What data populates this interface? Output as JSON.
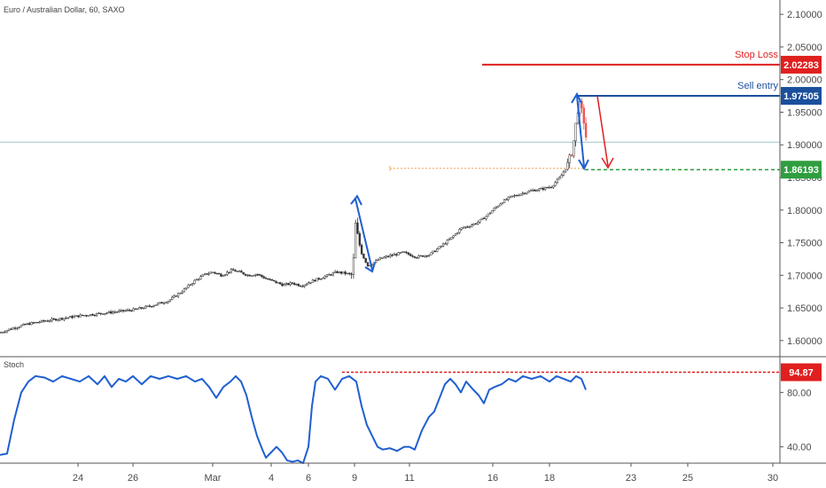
{
  "header": {
    "title": "Euro / Australian Dollar, 60, SAXO"
  },
  "indicator": {
    "label": "Stoch"
  },
  "colors": {
    "up": "#26a69a",
    "down": "#ef5350",
    "candle_body_up": "#ffffff",
    "candle_body_down": "#333333",
    "wick": "#333333",
    "stoch_line": "#1f5fd1",
    "stop_loss": "#e01f1f",
    "sell_entry": "#1b4f9c",
    "target": "#2e9e3f",
    "orange_dotted": "#f0a04b",
    "arrow_blue": "#1f5fd1",
    "arrow_red": "#e01f1f",
    "hline": "#9fc5c8"
  },
  "annotations": {
    "stop_loss_label": "Stop Loss",
    "stop_loss_value": "2.02283",
    "sell_entry_label": "Sell entry",
    "sell_entry_value": "1.97505",
    "target_value": "1.86193",
    "stoch_level_value": "94.87"
  },
  "chart_data": {
    "type": "candlestick",
    "title": "Euro / Australian Dollar, 60, SAXO",
    "price_axis": {
      "ticks": [
        "2.10000",
        "2.05000",
        "2.00000",
        "1.95000",
        "1.90000",
        "1.85000",
        "1.80000",
        "1.75000",
        "1.70000",
        "1.65000",
        "1.60000"
      ],
      "range": [
        1.578,
        2.122
      ]
    },
    "x_axis": {
      "ticks": [
        "24",
        "26",
        "Mar",
        "4",
        "6",
        "9",
        "11",
        "16",
        "18",
        "23",
        "25",
        "30"
      ]
    },
    "price_path": [
      [
        0,
        1.612
      ],
      [
        12,
        1.618
      ],
      [
        30,
        1.625
      ],
      [
        50,
        1.63
      ],
      [
        70,
        1.634
      ],
      [
        90,
        1.638
      ],
      [
        110,
        1.641
      ],
      [
        130,
        1.644
      ],
      [
        150,
        1.647
      ],
      [
        170,
        1.653
      ],
      [
        190,
        1.661
      ],
      [
        205,
        1.675
      ],
      [
        220,
        1.692
      ],
      [
        232,
        1.702
      ],
      [
        240,
        1.705
      ],
      [
        250,
        1.7
      ],
      [
        262,
        1.708
      ],
      [
        270,
        1.705
      ],
      [
        280,
        1.7
      ],
      [
        290,
        1.702
      ],
      [
        300,
        1.695
      ],
      [
        310,
        1.69
      ],
      [
        320,
        1.685
      ],
      [
        330,
        1.688
      ],
      [
        340,
        1.684
      ],
      [
        350,
        1.69
      ],
      [
        360,
        1.695
      ],
      [
        370,
        1.7
      ],
      [
        380,
        1.705
      ],
      [
        390,
        1.703
      ],
      [
        398,
        1.7
      ],
      [
        401,
        1.78
      ],
      [
        405,
        1.75
      ],
      [
        410,
        1.728
      ],
      [
        415,
        1.715
      ],
      [
        420,
        1.718
      ],
      [
        428,
        1.725
      ],
      [
        440,
        1.73
      ],
      [
        455,
        1.735
      ],
      [
        470,
        1.728
      ],
      [
        485,
        1.732
      ],
      [
        498,
        1.745
      ],
      [
        510,
        1.758
      ],
      [
        520,
        1.772
      ],
      [
        530,
        1.776
      ],
      [
        540,
        1.782
      ],
      [
        548,
        1.79
      ],
      [
        556,
        1.8
      ],
      [
        566,
        1.812
      ],
      [
        576,
        1.82
      ],
      [
        590,
        1.826
      ],
      [
        600,
        1.83
      ],
      [
        610,
        1.832
      ],
      [
        622,
        1.836
      ],
      [
        632,
        1.85
      ],
      [
        640,
        1.868
      ],
      [
        646,
        1.892
      ],
      [
        650,
        1.935
      ],
      [
        653,
        1.965
      ],
      [
        656,
        1.955
      ],
      [
        660,
        1.928
      ],
      [
        662,
        1.9
      ],
      [
        664,
        1.885
      ]
    ],
    "stochastic": {
      "label": "Stoch",
      "level_marked": 94.87,
      "ticks": [
        "80.00",
        "40.00"
      ],
      "range": [
        28,
        105
      ],
      "path": [
        [
          0,
          34
        ],
        [
          8,
          35
        ],
        [
          16,
          60
        ],
        [
          24,
          80
        ],
        [
          32,
          88
        ],
        [
          40,
          92
        ],
        [
          50,
          91
        ],
        [
          60,
          88
        ],
        [
          70,
          92
        ],
        [
          80,
          90
        ],
        [
          90,
          88
        ],
        [
          100,
          92
        ],
        [
          110,
          86
        ],
        [
          118,
          92
        ],
        [
          126,
          84
        ],
        [
          134,
          90
        ],
        [
          142,
          88
        ],
        [
          150,
          92
        ],
        [
          160,
          86
        ],
        [
          170,
          92
        ],
        [
          180,
          90
        ],
        [
          190,
          92
        ],
        [
          200,
          90
        ],
        [
          210,
          92
        ],
        [
          220,
          88
        ],
        [
          228,
          90
        ],
        [
          236,
          84
        ],
        [
          244,
          76
        ],
        [
          252,
          84
        ],
        [
          260,
          88
        ],
        [
          266,
          92
        ],
        [
          272,
          88
        ],
        [
          278,
          78
        ],
        [
          284,
          62
        ],
        [
          290,
          48
        ],
        [
          296,
          38
        ],
        [
          300,
          32
        ],
        [
          306,
          36
        ],
        [
          312,
          40
        ],
        [
          318,
          36
        ],
        [
          324,
          30
        ],
        [
          330,
          29
        ],
        [
          336,
          30
        ],
        [
          342,
          28
        ],
        [
          348,
          40
        ],
        [
          352,
          70
        ],
        [
          356,
          88
        ],
        [
          362,
          92
        ],
        [
          370,
          90
        ],
        [
          378,
          82
        ],
        [
          386,
          90
        ],
        [
          394,
          92
        ],
        [
          402,
          88
        ],
        [
          408,
          70
        ],
        [
          414,
          56
        ],
        [
          420,
          48
        ],
        [
          426,
          40
        ],
        [
          432,
          38
        ],
        [
          440,
          39
        ],
        [
          448,
          37
        ],
        [
          456,
          40
        ],
        [
          462,
          40
        ],
        [
          468,
          38
        ],
        [
          476,
          52
        ],
        [
          484,
          62
        ],
        [
          490,
          66
        ],
        [
          496,
          76
        ],
        [
          502,
          86
        ],
        [
          508,
          90
        ],
        [
          514,
          86
        ],
        [
          520,
          80
        ],
        [
          526,
          88
        ],
        [
          534,
          82
        ],
        [
          540,
          78
        ],
        [
          546,
          72
        ],
        [
          552,
          82
        ],
        [
          558,
          84
        ],
        [
          566,
          86
        ],
        [
          574,
          90
        ],
        [
          582,
          88
        ],
        [
          590,
          92
        ],
        [
          600,
          90
        ],
        [
          610,
          92
        ],
        [
          620,
          88
        ],
        [
          628,
          92
        ],
        [
          636,
          90
        ],
        [
          644,
          88
        ],
        [
          650,
          92
        ],
        [
          656,
          90
        ],
        [
          661,
          82
        ]
      ]
    },
    "levels": {
      "stop_loss": 2.02283,
      "sell_entry": 1.97505,
      "target": 1.86193,
      "reference_line": 1.904
    }
  }
}
